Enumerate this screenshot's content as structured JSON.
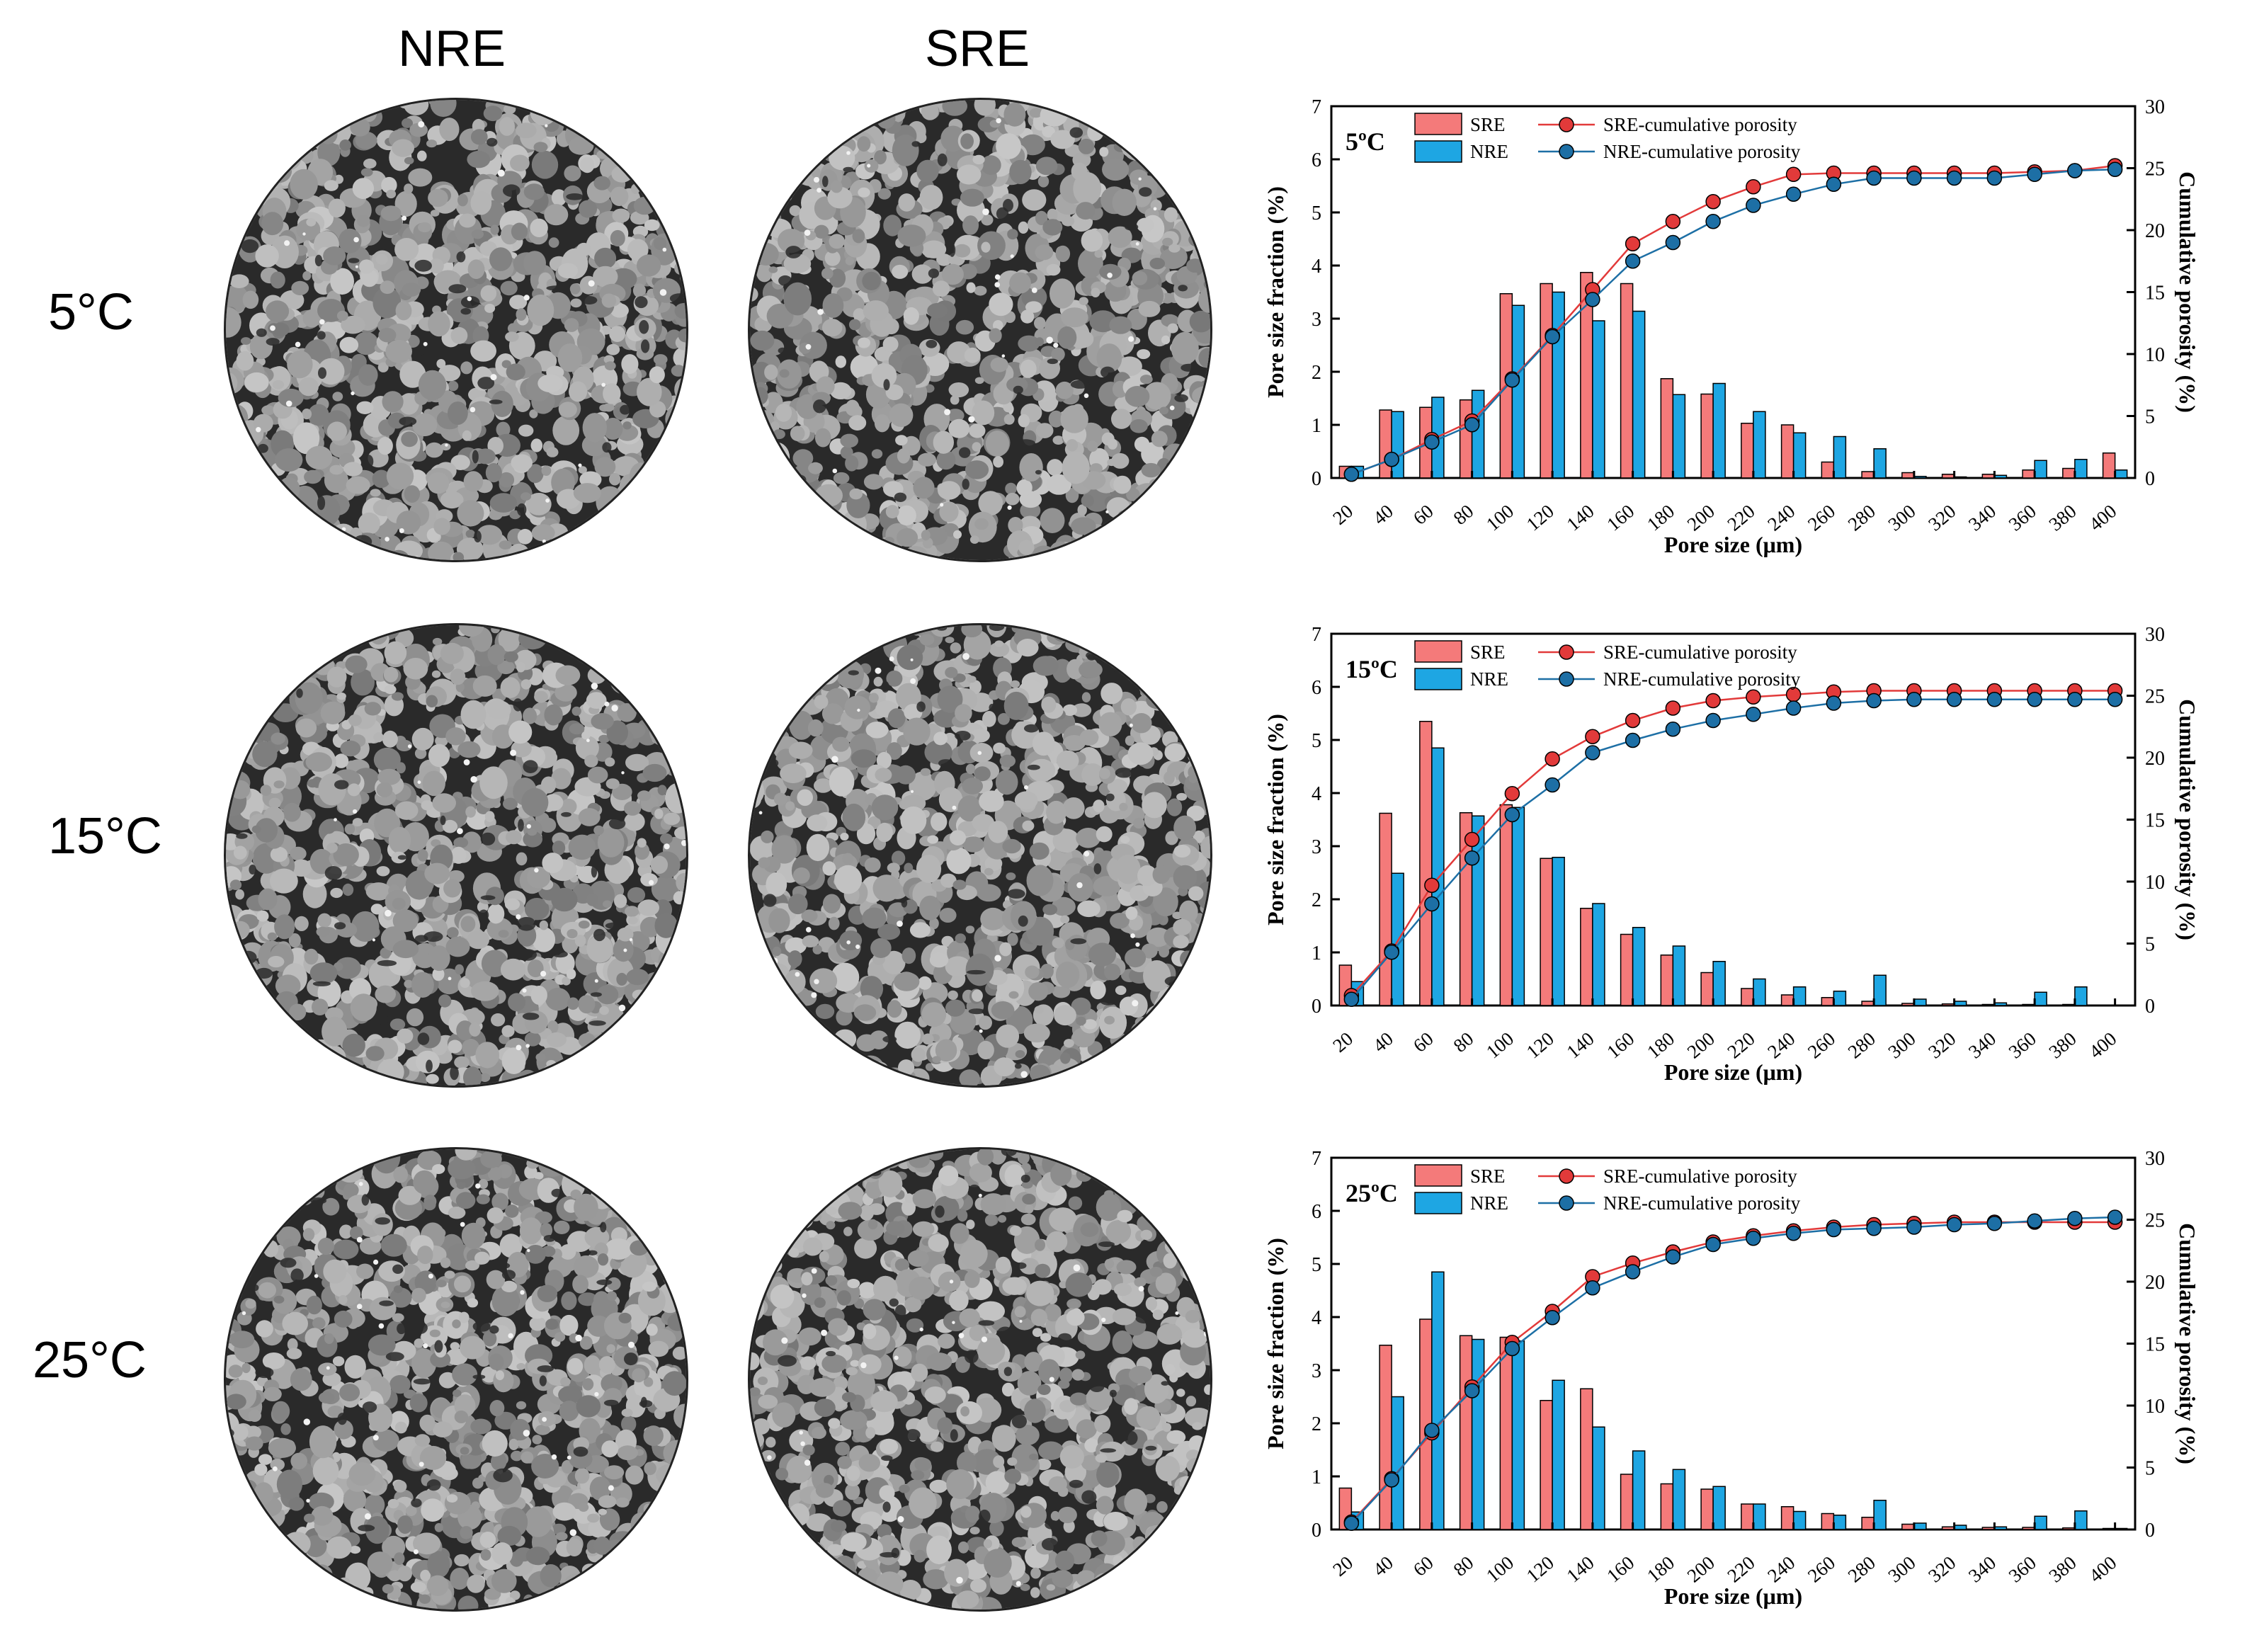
{
  "columns": [
    "NRE",
    "SRE"
  ],
  "rows": [
    "5°C",
    "15°C",
    "25°C"
  ],
  "colors": {
    "sre_bar": "#f47a7a",
    "nre_bar": "#1ea6e3",
    "sre_line": "#e23a3a",
    "nre_line": "#1d6fa5",
    "slice_dark": "#2a2a2a",
    "slice_mid": "#8f8f8f",
    "slice_light": "#c6c6c6"
  },
  "chart_data": [
    {
      "type": "bar",
      "panel_label": "5ºC",
      "xlabel": "Pore size (μm)",
      "ylabel": "Pore size fraction (%)",
      "y2label": "Cumulative porosity (%)",
      "ylim": [
        0,
        7
      ],
      "y2lim": [
        0,
        30
      ],
      "yticks": [
        0,
        1,
        2,
        3,
        4,
        5,
        6,
        7
      ],
      "y2ticks": [
        0,
        5,
        10,
        15,
        20,
        25,
        30
      ],
      "categories": [
        "20",
        "40",
        "60",
        "80",
        "100",
        "120",
        "140",
        "160",
        "180",
        "200",
        "220",
        "240",
        "260",
        "280",
        "300",
        "320",
        "340",
        "360",
        "380",
        "400"
      ],
      "series": [
        {
          "name": "SRE",
          "kind": "bar",
          "values": [
            0.22,
            1.28,
            1.33,
            1.47,
            3.47,
            3.66,
            3.87,
            3.66,
            1.87,
            1.58,
            1.03,
            1.0,
            0.3,
            0.12,
            0.1,
            0.07,
            0.07,
            0.15,
            0.18,
            0.47
          ]
        },
        {
          "name": "NRE",
          "kind": "bar",
          "values": [
            0.22,
            1.25,
            1.52,
            1.65,
            3.25,
            3.5,
            2.96,
            3.14,
            1.57,
            1.78,
            1.25,
            0.85,
            0.78,
            0.55,
            0.03,
            0.02,
            0.05,
            0.33,
            0.35,
            0.15
          ]
        },
        {
          "name": "SRE-cumulative porosity",
          "kind": "line",
          "values": [
            0.3,
            1.5,
            3.1,
            4.6,
            8.0,
            11.5,
            15.2,
            18.9,
            20.7,
            22.3,
            23.5,
            24.5,
            24.6,
            24.6,
            24.6,
            24.6,
            24.6,
            24.7,
            24.8,
            25.2
          ]
        },
        {
          "name": "NRE-cumulative porosity",
          "kind": "line",
          "values": [
            0.3,
            1.5,
            2.9,
            4.3,
            7.9,
            11.4,
            14.4,
            17.5,
            19.0,
            20.7,
            22.0,
            22.9,
            23.7,
            24.2,
            24.2,
            24.2,
            24.2,
            24.5,
            24.8,
            24.9
          ]
        }
      ]
    },
    {
      "type": "bar",
      "panel_label": "15ºC",
      "xlabel": "Pore size (μm)",
      "ylabel": "Pore size fraction (%)",
      "y2label": "Cumulative porosity (%)",
      "ylim": [
        0,
        7
      ],
      "y2lim": [
        0,
        30
      ],
      "yticks": [
        0,
        1,
        2,
        3,
        4,
        5,
        6,
        7
      ],
      "y2ticks": [
        0,
        5,
        10,
        15,
        20,
        25,
        30
      ],
      "categories": [
        "20",
        "40",
        "60",
        "80",
        "100",
        "120",
        "140",
        "160",
        "180",
        "200",
        "220",
        "240",
        "260",
        "280",
        "300",
        "320",
        "340",
        "360",
        "380",
        "400"
      ],
      "series": [
        {
          "name": "SRE",
          "kind": "bar",
          "values": [
            0.76,
            3.62,
            5.35,
            3.63,
            3.78,
            2.77,
            1.83,
            1.34,
            0.95,
            0.62,
            0.32,
            0.2,
            0.15,
            0.08,
            0.04,
            0.03,
            0.02,
            0.02,
            0.02,
            0.01
          ]
        },
        {
          "name": "NRE",
          "kind": "bar",
          "values": [
            0.45,
            2.49,
            4.85,
            3.57,
            3.73,
            2.79,
            1.92,
            1.47,
            1.12,
            0.83,
            0.5,
            0.35,
            0.27,
            0.57,
            0.12,
            0.08,
            0.05,
            0.25,
            0.35,
            0.01
          ]
        },
        {
          "name": "SRE-cumulative porosity",
          "kind": "line",
          "values": [
            0.8,
            4.4,
            9.7,
            13.4,
            17.1,
            19.9,
            21.7,
            23.0,
            24.0,
            24.6,
            24.9,
            25.1,
            25.3,
            25.4,
            25.4,
            25.4,
            25.4,
            25.4,
            25.4,
            25.4
          ]
        },
        {
          "name": "NRE-cumulative porosity",
          "kind": "line",
          "values": [
            0.5,
            4.3,
            8.2,
            11.9,
            15.4,
            17.8,
            20.4,
            21.4,
            22.3,
            23.0,
            23.5,
            24.0,
            24.4,
            24.6,
            24.7,
            24.7,
            24.7,
            24.7,
            24.7,
            24.7
          ]
        }
      ]
    },
    {
      "type": "bar",
      "panel_label": "25ºC",
      "xlabel": "Pore size (μm)",
      "ylabel": "Pore size fraction (%)",
      "y2label": "Cumulative porosity (%)",
      "ylim": [
        0,
        7
      ],
      "y2lim": [
        0,
        30
      ],
      "yticks": [
        0,
        1,
        2,
        3,
        4,
        5,
        6,
        7
      ],
      "y2ticks": [
        0,
        5,
        10,
        15,
        20,
        25,
        30
      ],
      "categories": [
        "20",
        "40",
        "60",
        "80",
        "100",
        "120",
        "140",
        "160",
        "180",
        "200",
        "220",
        "240",
        "260",
        "280",
        "300",
        "320",
        "340",
        "360",
        "380",
        "400"
      ],
      "series": [
        {
          "name": "SRE",
          "kind": "bar",
          "values": [
            0.78,
            3.47,
            3.96,
            3.65,
            3.62,
            2.43,
            2.65,
            1.04,
            0.86,
            0.76,
            0.48,
            0.43,
            0.3,
            0.23,
            0.1,
            0.05,
            0.04,
            0.04,
            0.03,
            0.02
          ]
        },
        {
          "name": "NRE",
          "kind": "bar",
          "values": [
            0.33,
            2.5,
            4.85,
            3.58,
            3.55,
            2.81,
            1.93,
            1.48,
            1.13,
            0.81,
            0.48,
            0.34,
            0.27,
            0.55,
            0.12,
            0.08,
            0.05,
            0.25,
            0.35,
            0.02
          ]
        },
        {
          "name": "SRE-cumulative porosity",
          "kind": "line",
          "values": [
            0.6,
            4.1,
            7.8,
            11.5,
            15.1,
            17.6,
            20.4,
            21.5,
            22.4,
            23.2,
            23.7,
            24.1,
            24.4,
            24.6,
            24.7,
            24.8,
            24.8,
            24.8,
            24.8,
            24.8
          ]
        },
        {
          "name": "NRE-cumulative porosity",
          "kind": "line",
          "values": [
            0.5,
            4.0,
            8.0,
            11.2,
            14.6,
            17.1,
            19.5,
            20.8,
            22.0,
            23.0,
            23.5,
            23.9,
            24.2,
            24.3,
            24.4,
            24.6,
            24.7,
            24.9,
            25.1,
            25.2
          ]
        }
      ]
    }
  ]
}
